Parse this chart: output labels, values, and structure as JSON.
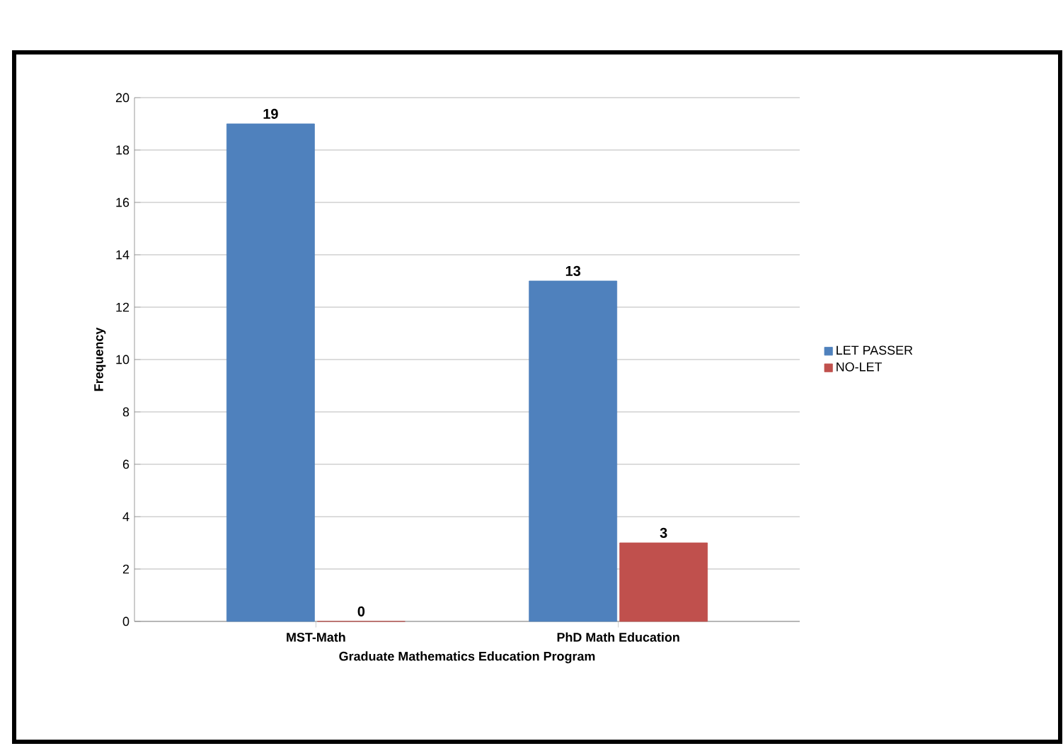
{
  "chart_data": {
    "type": "bar",
    "xlabel": "Graduate Mathematics Education Program",
    "ylabel": "Frequency",
    "categories": [
      "MST-Math",
      "PhD Math Education"
    ],
    "series": [
      {
        "name": "LET PASSER",
        "color": "#4f81bd",
        "values": [
          19,
          13
        ]
      },
      {
        "name": "NO-LET",
        "color": "#c0504d",
        "values": [
          0,
          3
        ]
      }
    ],
    "ylim": [
      0,
      20
    ],
    "yticks": [
      0,
      2,
      4,
      6,
      8,
      10,
      12,
      14,
      16,
      18,
      20
    ],
    "grid": "y",
    "legend": "right",
    "data_labels": true
  }
}
